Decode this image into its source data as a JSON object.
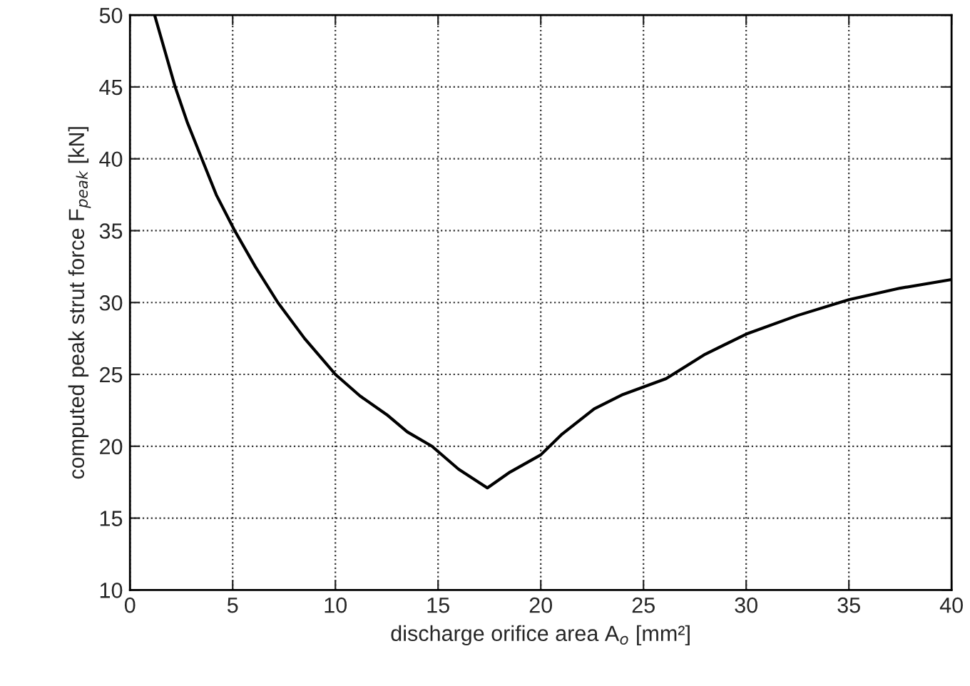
{
  "chart_data": {
    "type": "line",
    "xlabel": "discharge orifice area A$_{o}$ [mm²]",
    "ylabel": "computed peak strut force F$_{peak}$ [kN]",
    "series": [
      {
        "color": "#000000",
        "x": [
          1.2,
          1.7,
          2.2,
          2.8,
          3.5,
          4.2,
          5.1,
          6.1,
          7.2,
          8.5,
          10.0,
          11.2,
          12.5,
          13.5,
          14.7,
          16.0,
          17.4,
          18.5,
          20.0,
          21.0,
          22.6,
          24.0,
          26.1,
          28.0,
          30.0,
          32.5,
          35.0,
          37.5,
          40.0
        ],
        "values": [
          50,
          47.5,
          45,
          42.5,
          40,
          37.5,
          35,
          32.5,
          30,
          27.5,
          25,
          23.5,
          22.2,
          21,
          20,
          18.4,
          17.1,
          18.2,
          19.4,
          20.8,
          22.6,
          23.6,
          24.7,
          26.4,
          27.8,
          29.1,
          30.2,
          31.0,
          31.6
        ]
      }
    ],
    "xlim": [
      0,
      40
    ],
    "xticks": [
      0,
      5,
      10,
      15,
      20,
      25,
      30,
      35,
      40
    ],
    "ylim": [
      10,
      50
    ],
    "yticks": [
      10,
      15,
      20,
      25,
      30,
      35,
      40,
      45,
      50
    ],
    "grid": true,
    "line_style": "solid",
    "marker": "none"
  }
}
